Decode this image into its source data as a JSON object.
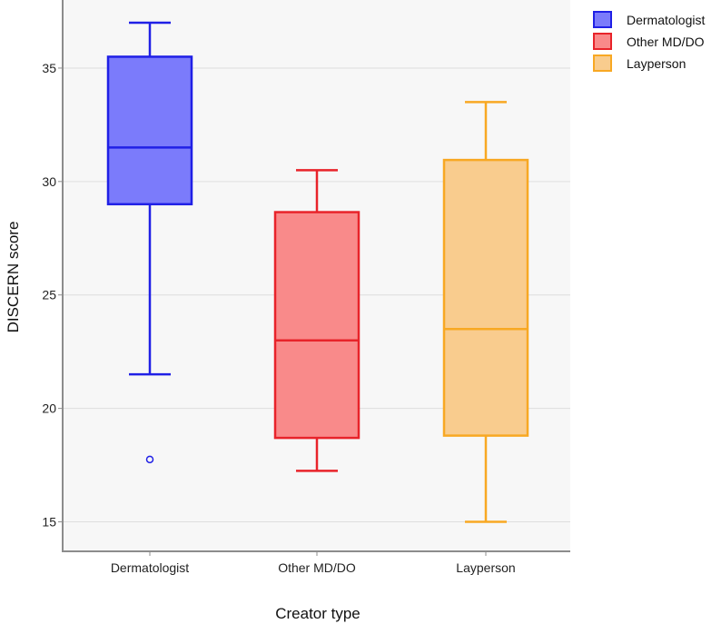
{
  "chart_data": {
    "type": "boxplot",
    "title": "",
    "xlabel": "Creator type",
    "ylabel": "DISCERN score",
    "ylim": [
      13.7,
      38.0
    ],
    "yticks": [
      15,
      20,
      25,
      30,
      35
    ],
    "grid": "horizontal",
    "legend_position": "top-right",
    "categories": [
      "Dermatologist",
      "Other MD/DO",
      "Layperson"
    ],
    "series": [
      {
        "name": "Dermatologist",
        "whisker_low": 21.5,
        "q1": 29.0,
        "median": 31.5,
        "q3": 35.5,
        "whisker_high": 37.0,
        "outliers": [
          17.75
        ],
        "fill": "#7b7bfb",
        "stroke": "#2020e6"
      },
      {
        "name": "Other MD/DO",
        "whisker_low": 17.25,
        "q1": 18.7,
        "median": 23.0,
        "q3": 28.65,
        "whisker_high": 30.5,
        "outliers": [],
        "fill": "#f98a8a",
        "stroke": "#e8232a"
      },
      {
        "name": "Layperson",
        "whisker_low": 15.0,
        "q1": 18.8,
        "median": 23.5,
        "q3": 30.95,
        "whisker_high": 33.5,
        "outliers": [],
        "fill": "#f9cc8e",
        "stroke": "#f8a823"
      }
    ]
  }
}
